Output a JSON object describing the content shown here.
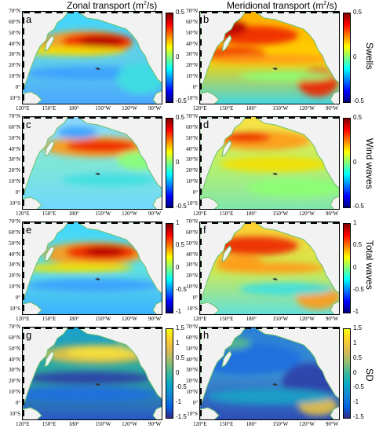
{
  "titles": {
    "zonal": "Zonal transport (m",
    "zonal_sup": "2",
    "zonal_end": "/s)",
    "meridional": "Meridional transport (m",
    "meridional_sup": "2",
    "meridional_end": "/s)"
  },
  "lat_labels": [
    "70°N",
    "60°N",
    "50°N",
    "40°N",
    "30°N",
    "20°N",
    "10°N",
    "0°",
    "10°S"
  ],
  "lon_labels": [
    "120°E",
    "150°E",
    "180°",
    "150°W",
    "120°W",
    "90°W"
  ],
  "rows": [
    {
      "label": "Swells",
      "left_letter": "a",
      "right_letter": "b",
      "ticks": [
        "0.5",
        "0",
        "-0.5"
      ],
      "colormap": "jet"
    },
    {
      "label": "Wind waves",
      "left_letter": "c",
      "right_letter": "d",
      "ticks": [
        "0.5",
        "0",
        "-0.5"
      ],
      "colormap": "jet"
    },
    {
      "label": "Total waves",
      "left_letter": "e",
      "right_letter": "f",
      "ticks": [
        "1",
        "0.5",
        "0",
        "-0.5",
        "-1"
      ],
      "colormap": "jet"
    },
    {
      "label": "SD",
      "left_letter": "g",
      "right_letter": "h",
      "ticks": [
        "1.5",
        "1",
        "0.5",
        "0",
        "-0.5",
        "-1",
        "-1.5"
      ],
      "colormap": "parula"
    }
  ],
  "colors": {
    "land": "#f2f2f2",
    "coast": "#6fbf6f"
  }
}
